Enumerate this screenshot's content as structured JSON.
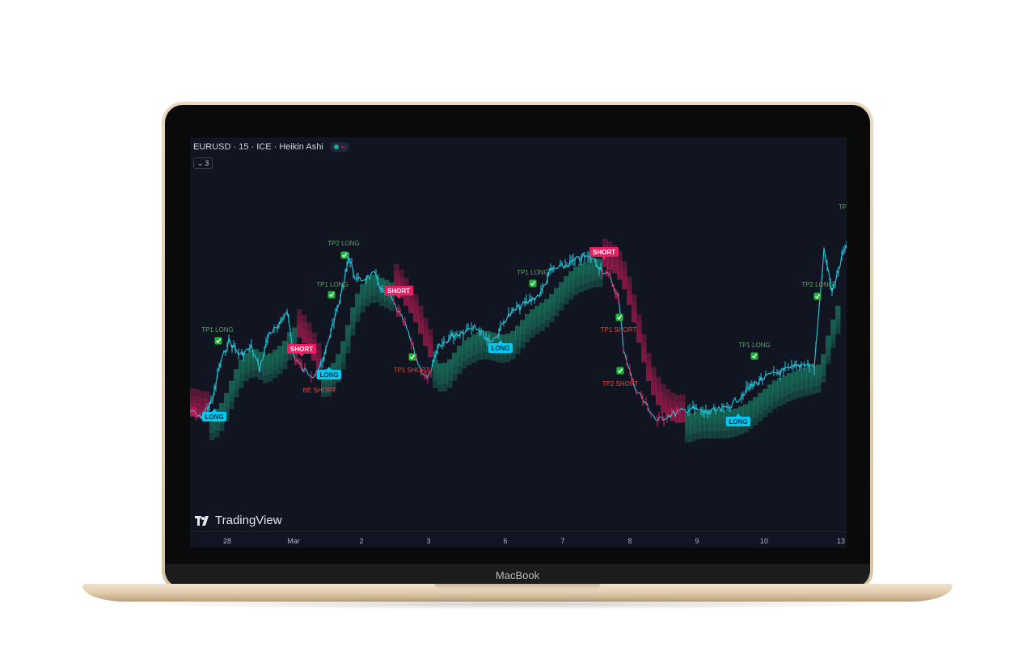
{
  "device": {
    "brand_label": "MacBook"
  },
  "chart": {
    "symbol_title": "EURUSD · 15 · ICE · Heikin Ashi",
    "indicator_count": "3",
    "watermark": "TradingView",
    "bull_color": "#26c6da",
    "bear_color": "#e91e63",
    "tp_color": "#4caf50",
    "sl_color": "#f44336",
    "time_ticks": [
      "28",
      "Mar",
      "2",
      "3",
      "6",
      "7",
      "8",
      "9",
      "10",
      "13"
    ],
    "signals": [
      {
        "text": "LONG",
        "kind": "long"
      },
      {
        "text": "TP1 LONG",
        "kind": "tp-long",
        "check": true
      },
      {
        "text": "SHORT",
        "kind": "short"
      },
      {
        "text": "BE SHORT",
        "kind": "tp-short"
      },
      {
        "text": "LONG",
        "kind": "long"
      },
      {
        "text": "TP1 LONG",
        "kind": "tp-long",
        "check": true
      },
      {
        "text": "TP2 LONG",
        "kind": "tp-long",
        "check": true
      },
      {
        "text": "SHORT",
        "kind": "short"
      },
      {
        "text": "TP1 SHORT",
        "kind": "tp-short",
        "check": true
      },
      {
        "text": "LONG",
        "kind": "long"
      },
      {
        "text": "TP1 LONG",
        "kind": "tp-long",
        "check": true
      },
      {
        "text": "SHORT",
        "kind": "short"
      },
      {
        "text": "TP1 SHORT",
        "kind": "tp-short",
        "check": true
      },
      {
        "text": "TP2 SHORT",
        "kind": "tp-short",
        "check": true
      },
      {
        "text": "TP1 LONG",
        "kind": "tp-long",
        "check": true
      },
      {
        "text": "LONG",
        "kind": "long"
      },
      {
        "text": "TP2 LONG",
        "kind": "tp-long",
        "check": true
      },
      {
        "text": "TP",
        "kind": "tp-long"
      }
    ]
  }
}
